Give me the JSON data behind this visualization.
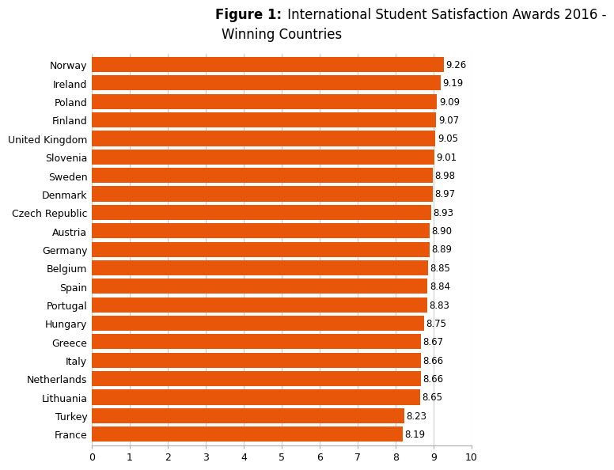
{
  "title_bold": "Figure 1:",
  "title_rest_line1": " International Student Satisfaction Awards 2016 -",
  "title_line2": "Winning Countries",
  "countries": [
    "Norway",
    "Ireland",
    "Poland",
    "Finland",
    "United Kingdom",
    "Slovenia",
    "Sweden",
    "Denmark",
    "Czech Republic",
    "Austria",
    "Germany",
    "Belgium",
    "Spain",
    "Portugal",
    "Hungary",
    "Greece",
    "Italy",
    "Netherlands",
    "Lithuania",
    "Turkey",
    "France"
  ],
  "values": [
    9.26,
    9.19,
    9.09,
    9.07,
    9.05,
    9.01,
    8.98,
    8.97,
    8.93,
    8.9,
    8.89,
    8.85,
    8.84,
    8.83,
    8.75,
    8.67,
    8.66,
    8.66,
    8.65,
    8.23,
    8.19
  ],
  "bar_color": "#E8560A",
  "background_color": "#FFFFFF",
  "xlim": [
    0,
    10
  ],
  "xticks": [
    0,
    1,
    2,
    3,
    4,
    5,
    6,
    7,
    8,
    9,
    10
  ],
  "bar_height": 0.82,
  "value_fontsize": 8.5,
  "label_fontsize": 9,
  "title_fontsize": 12
}
